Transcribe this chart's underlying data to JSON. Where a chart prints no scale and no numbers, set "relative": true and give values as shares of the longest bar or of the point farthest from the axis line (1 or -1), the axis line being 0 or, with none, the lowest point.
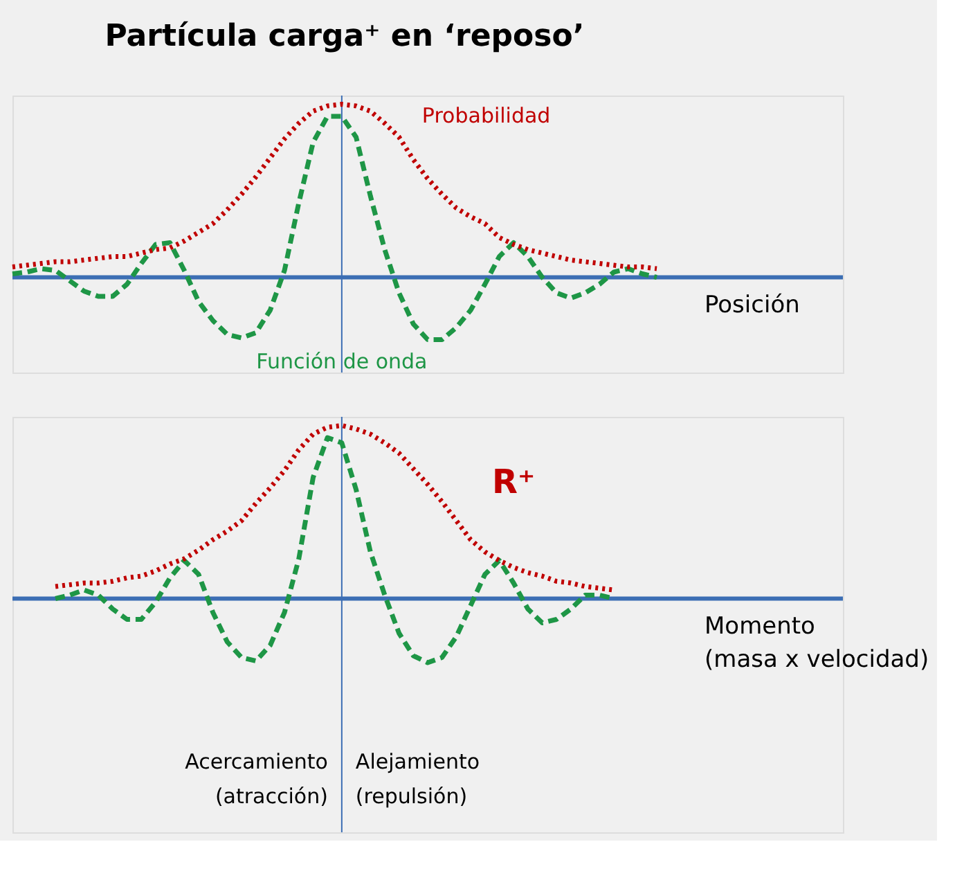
{
  "chart_data": [
    {
      "type": "line",
      "relative": true,
      "title": "Partícula carga⁺ en ‘reposo’",
      "xlabel": "Posición",
      "ref_lines": [
        {
          "axis": "y",
          "value": 0,
          "color": "#3c6eb4"
        }
      ],
      "categories": [
        null,
        null,
        null,
        null,
        null,
        null,
        null,
        null,
        null,
        null,
        null,
        null,
        null,
        null,
        null,
        null,
        null,
        null,
        null,
        null,
        null,
        null,
        null,
        null,
        null,
        null,
        null,
        null,
        null,
        null,
        null,
        null,
        null,
        null,
        null,
        null,
        null,
        null,
        null,
        null,
        null,
        null,
        null,
        null,
        null,
        null,
        null,
        null,
        null,
        null,
        null,
        null,
        null,
        null,
        null,
        null,
        null,
        null,
        null
      ],
      "series": [
        {
          "name": "Función de onda",
          "color": "#1e9646",
          "line_style": "dashed",
          "values": [
            0.02,
            0.03,
            0.05,
            0.04,
            -0.02,
            -0.08,
            -0.11,
            -0.11,
            -0.04,
            0.08,
            0.19,
            0.2,
            0.04,
            -0.14,
            -0.25,
            -0.33,
            -0.35,
            -0.32,
            -0.19,
            0.04,
            0.43,
            0.78,
            0.93,
            0.93,
            0.81,
            0.47,
            0.16,
            -0.09,
            -0.27,
            -0.36,
            -0.36,
            -0.29,
            -0.19,
            -0.04,
            0.12,
            0.2,
            0.12,
            0,
            -0.09,
            -0.12,
            -0.09,
            -0.04,
            0.03,
            0.05,
            0.02,
            0,
            null,
            null,
            null,
            null,
            null,
            null,
            null,
            null,
            null,
            null,
            null,
            null,
            null
          ]
        },
        {
          "name": "Probabilidad",
          "color": "#c00000",
          "line_style": "dotted",
          "values": [
            0.06,
            0.07,
            0.08,
            0.09,
            0.09,
            0.1,
            0.11,
            0.12,
            0.12,
            0.14,
            0.16,
            0.17,
            0.21,
            0.26,
            0.31,
            0.39,
            0.48,
            0.58,
            0.69,
            0.8,
            0.89,
            0.96,
            0.99,
            1,
            0.99,
            0.96,
            0.89,
            0.81,
            0.68,
            0.57,
            0.48,
            0.4,
            0.35,
            0.31,
            0.23,
            0.19,
            0.16,
            0.14,
            0.12,
            0.1,
            0.09,
            0.08,
            0.07,
            0.06,
            0.06,
            0.05,
            null,
            null,
            null,
            null,
            null,
            null,
            null,
            null,
            null,
            null,
            null,
            null,
            null
          ]
        }
      ]
    },
    {
      "type": "line",
      "relative": true,
      "xlabel": "Momento\n(masa x velocidad)",
      "ref_lines": [
        {
          "axis": "y",
          "value": 0,
          "color": "#3c6eb4"
        }
      ],
      "categories": [
        null,
        null,
        null,
        null,
        null,
        null,
        null,
        null,
        null,
        null,
        null,
        null,
        null,
        null,
        null,
        null,
        null,
        null,
        null,
        null,
        null,
        null,
        null,
        null,
        null,
        null,
        null,
        null,
        null,
        null,
        null,
        null,
        null,
        null,
        null,
        null,
        null,
        null,
        null,
        null,
        null,
        null,
        null,
        null,
        null,
        null,
        null,
        null,
        null,
        null,
        null,
        null,
        null,
        null,
        null,
        null,
        null,
        null,
        null
      ],
      "series": [
        {
          "color": "#1e9646",
          "line_style": "dashed",
          "values": [
            null,
            null,
            null,
            0,
            0.02,
            0.05,
            0.02,
            -0.06,
            -0.12,
            -0.12,
            -0.02,
            0.12,
            0.22,
            0.14,
            -0.08,
            -0.25,
            -0.34,
            -0.36,
            -0.27,
            -0.08,
            0.23,
            0.7,
            0.93,
            0.9,
            0.63,
            0.27,
            0.02,
            -0.2,
            -0.33,
            -0.37,
            -0.34,
            -0.22,
            -0.04,
            0.14,
            0.22,
            0.09,
            -0.06,
            -0.14,
            -0.12,
            -0.06,
            0.02,
            0.02,
            0,
            null,
            null,
            null,
            null,
            null,
            null,
            null,
            null,
            null,
            null,
            null,
            null,
            null,
            null,
            null,
            null
          ]
        },
        {
          "color": "#c00000",
          "line_style": "dotted",
          "values": [
            null,
            null,
            null,
            0.07,
            0.08,
            0.09,
            0.09,
            0.1,
            0.12,
            0.13,
            0.16,
            0.2,
            0.23,
            0.28,
            0.34,
            0.39,
            0.45,
            0.55,
            0.64,
            0.74,
            0.86,
            0.95,
            0.99,
            1,
            0.98,
            0.95,
            0.9,
            0.84,
            0.75,
            0.66,
            0.56,
            0.45,
            0.34,
            0.27,
            0.22,
            0.18,
            0.15,
            0.13,
            0.1,
            0.09,
            0.07,
            0.06,
            0.05,
            null,
            null,
            null,
            null,
            null,
            null,
            null,
            null,
            null,
            null,
            null,
            null,
            null,
            null,
            null,
            null
          ]
        }
      ],
      "annotations": [
        "R⁺",
        "Acercamiento\n(atracción)",
        "Alejamiento\n(repulsión)"
      ]
    }
  ]
}
